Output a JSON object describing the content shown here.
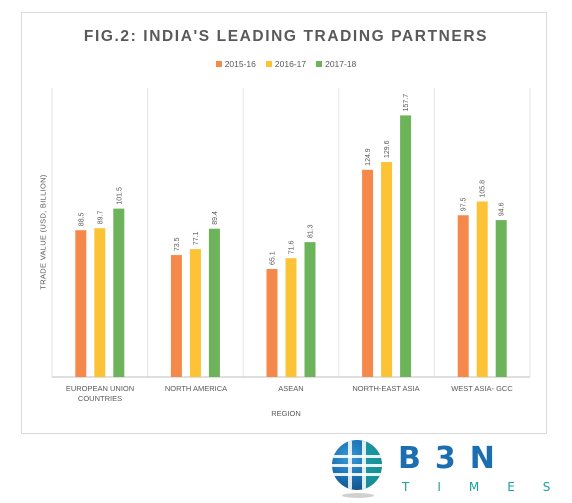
{
  "chart_data": {
    "type": "bar",
    "title": "FIG.2: INDIA'S LEADING TRADING PARTNERS",
    "xlabel": "REGION",
    "ylabel": "TRADE VALUE (USD, BILLION)",
    "categories": [
      "EUROPEAN UNION\nCOUNTRIES",
      "NORTH AMERICA",
      "ASEAN",
      "NORTH-EAST ASIA",
      "WEST ASIA- GCC"
    ],
    "series": [
      {
        "name": "2015-16",
        "color": "#f4894b",
        "values": [
          88.5,
          73.5,
          65.1,
          124.9,
          97.5
        ]
      },
      {
        "name": "2016-17",
        "color": "#fdc336",
        "values": [
          89.7,
          77.1,
          71.6,
          129.6,
          105.8
        ]
      },
      {
        "name": "2017-18",
        "color": "#6db35a",
        "values": [
          101.5,
          89.4,
          81.3,
          157.7,
          94.6
        ]
      }
    ],
    "ylim": [
      0,
      170
    ],
    "grid": false,
    "legend_position": "top"
  },
  "logo": {
    "brand": "B3N",
    "sub": "TIMES"
  }
}
